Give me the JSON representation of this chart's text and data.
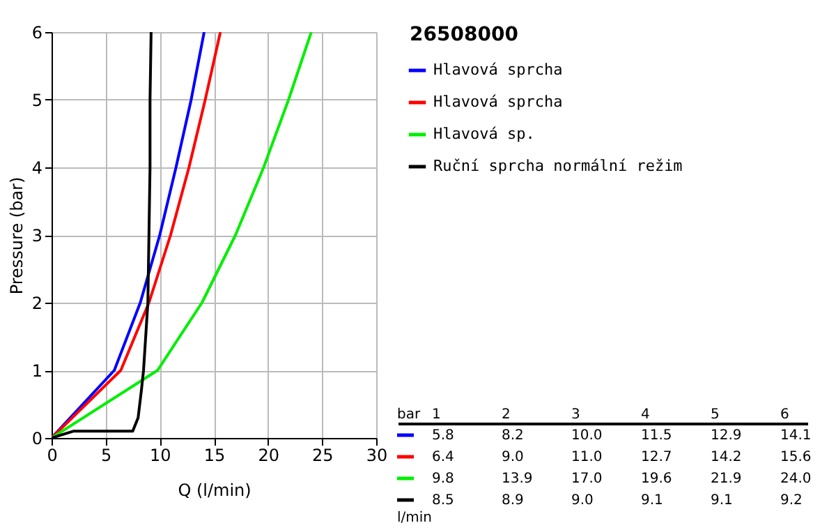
{
  "chart_data": {
    "type": "line",
    "title": "26508000",
    "xlabel": "Q (l/min)",
    "ylabel": "Pressure (bar)",
    "xlim": [
      0,
      30
    ],
    "xticks": [
      0,
      5,
      10,
      15,
      20,
      25,
      30
    ],
    "ylim": [
      0,
      6
    ],
    "yticks": [
      0,
      1,
      2,
      3,
      4,
      5,
      6
    ],
    "grid": true,
    "legend": "right",
    "line_style": "solid",
    "marker": "none",
    "annotations": [
      "bar",
      "1",
      "2",
      "3",
      "4",
      "5",
      "6",
      "5.8",
      "8.2",
      "10.0",
      "11.5",
      "12.9",
      "14.1",
      "6.4",
      "9.0",
      "11.0",
      "12.7",
      "14.2",
      "15.6",
      "9.8",
      "13.9",
      "17.0",
      "19.6",
      "21.9",
      "24.0",
      "8.5",
      "8.9",
      "9.0",
      "9.1",
      "9.1",
      "9.2",
      "l/min"
    ],
    "series": [
      {
        "name": "Hlavová sprcha",
        "color": "#0000ff",
        "x": [
          0,
          5.8,
          8.2,
          10.0,
          11.5,
          12.9,
          14.1
        ],
        "values": [
          0,
          1,
          2,
          3,
          4,
          5,
          6
        ]
      },
      {
        "name": "Hlavová sprcha",
        "color": "#ff0000",
        "x": [
          0,
          6.4,
          9.0,
          11.0,
          12.7,
          14.2,
          15.6
        ],
        "values": [
          0,
          1,
          2,
          3,
          4,
          5,
          6
        ]
      },
      {
        "name": "Hlavová sp.",
        "color": "#00ee00",
        "x": [
          0,
          9.8,
          13.9,
          17.0,
          19.6,
          21.9,
          24.0
        ],
        "values": [
          0,
          1,
          2,
          3,
          4,
          5,
          6
        ]
      },
      {
        "name": "Ruční sprcha normální režim",
        "color": "#000000",
        "x": [
          0,
          2,
          7.5,
          8.0,
          8.3,
          8.5,
          8.9,
          9.0,
          9.1,
          9.1,
          9.2
        ],
        "values": [
          0,
          0.1,
          0.1,
          0.3,
          0.7,
          1,
          2,
          3,
          4,
          5,
          6
        ]
      }
    ]
  }
}
